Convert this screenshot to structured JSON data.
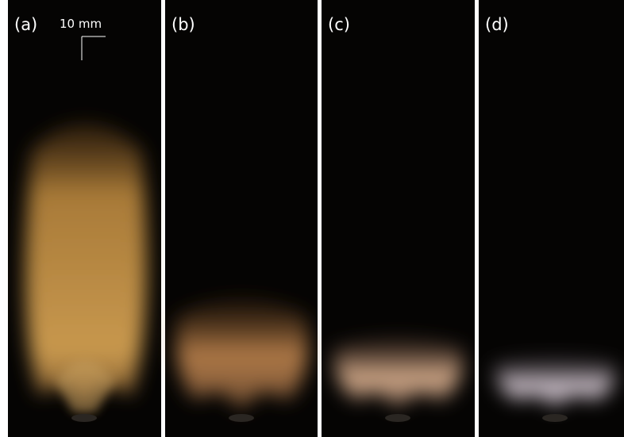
{
  "panels": [
    {
      "label": "(a)"
    },
    {
      "label": "(b)"
    },
    {
      "label": "(c)"
    },
    {
      "label": "(d)"
    }
  ],
  "scale_bar": {
    "label": "10 mm"
  }
}
